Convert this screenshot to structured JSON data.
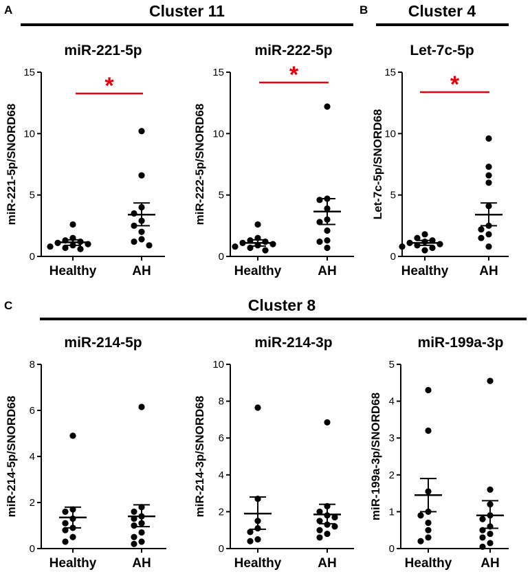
{
  "panels": {
    "a": {
      "letter": "A",
      "cluster": "Cluster 11"
    },
    "b": {
      "letter": "B",
      "cluster": "Cluster 4"
    },
    "c": {
      "letter": "C",
      "cluster": "Cluster 8"
    }
  },
  "colors": {
    "points": "#000000",
    "significance": "#e8000b"
  },
  "chart_data": [
    {
      "type": "scatter",
      "panel": "A",
      "title": "miR-221-5p",
      "ylabel": "miR-221-5p/SNORD68",
      "categories": [
        "Healthy",
        "AH"
      ],
      "ylim": [
        0,
        15
      ],
      "yticks": [
        0,
        5,
        10,
        15
      ],
      "significance": "*",
      "series": [
        {
          "name": "Healthy",
          "values": [
            2.6,
            1.5,
            1.3,
            1.2,
            1.1,
            1.0,
            0.9,
            0.8,
            0.7,
            0.6
          ],
          "mean": 1.15,
          "sem_low": 0.9,
          "sem_high": 1.35
        },
        {
          "name": "AH",
          "values": [
            10.2,
            6.6,
            4.0,
            3.5,
            2.9,
            2.5,
            2.0,
            1.4,
            1.2,
            0.9
          ],
          "mean": 3.4,
          "sem_low": 2.5,
          "sem_high": 4.35
        }
      ]
    },
    {
      "type": "scatter",
      "panel": "A",
      "title": "miR-222-5p",
      "ylabel": "miR-222-5p/SNORD68",
      "categories": [
        "Healthy",
        "AH"
      ],
      "ylim": [
        0,
        15
      ],
      "yticks": [
        0,
        5,
        10,
        15
      ],
      "significance": "*",
      "series": [
        {
          "name": "Healthy",
          "values": [
            2.6,
            1.5,
            1.3,
            1.2,
            1.1,
            1.0,
            0.9,
            0.8,
            0.7,
            0.5
          ],
          "mean": 1.1,
          "sem_low": 0.85,
          "sem_high": 1.35
        },
        {
          "name": "AH",
          "values": [
            12.2,
            4.7,
            4.6,
            3.9,
            3.0,
            2.8,
            2.1,
            1.3,
            1.2,
            0.7
          ],
          "mean": 3.65,
          "sem_low": 2.6,
          "sem_high": 4.7
        }
      ]
    },
    {
      "type": "scatter",
      "panel": "B",
      "title": "Let-7c-5p",
      "ylabel": "Let-7c-5p/SNORD68",
      "categories": [
        "Healthy",
        "AH"
      ],
      "ylim": [
        0,
        15
      ],
      "yticks": [
        0,
        5,
        10,
        15
      ],
      "significance": "*",
      "series": [
        {
          "name": "Healthy",
          "values": [
            1.8,
            1.5,
            1.3,
            1.2,
            1.1,
            1.0,
            0.9,
            0.8,
            0.7,
            0.5
          ],
          "mean": 1.1,
          "sem_low": 0.9,
          "sem_high": 1.3
        },
        {
          "name": "AH",
          "values": [
            9.6,
            7.3,
            6.6,
            6.0,
            4.1,
            2.5,
            2.2,
            1.8,
            1.5,
            0.8
          ],
          "mean": 3.4,
          "sem_low": 2.5,
          "sem_high": 4.35
        }
      ]
    },
    {
      "type": "scatter",
      "panel": "C",
      "title": "miR-214-5p",
      "ylabel": "miR-214-5p/SNORD68",
      "categories": [
        "Healthy",
        "AH"
      ],
      "ylim": [
        0,
        8
      ],
      "yticks": [
        0,
        2,
        4,
        6,
        8
      ],
      "significance": "",
      "series": [
        {
          "name": "Healthy",
          "values": [
            4.9,
            1.7,
            1.6,
            1.3,
            1.1,
            0.9,
            0.8,
            0.5,
            0.3
          ],
          "mean": 1.35,
          "sem_low": 0.9,
          "sem_high": 1.8
        },
        {
          "name": "AH",
          "values": [
            6.15,
            1.8,
            1.6,
            1.4,
            1.3,
            1.1,
            1.0,
            0.7,
            0.5,
            0.3,
            0.2
          ],
          "mean": 1.4,
          "sem_low": 0.95,
          "sem_high": 1.9
        }
      ]
    },
    {
      "type": "scatter",
      "panel": "C",
      "title": "miR-214-3p",
      "ylabel": "miR-214-3p/SNORD68",
      "categories": [
        "Healthy",
        "AH"
      ],
      "ylim": [
        0,
        10
      ],
      "yticks": [
        0,
        2,
        4,
        6,
        8,
        10
      ],
      "significance": "",
      "series": [
        {
          "name": "Healthy",
          "values": [
            7.65,
            2.7,
            1.5,
            1.1,
            0.9,
            0.5,
            0.4
          ],
          "mean": 1.9,
          "sem_low": 1.05,
          "sem_high": 2.8
        },
        {
          "name": "AH",
          "values": [
            6.85,
            2.3,
            2.0,
            1.8,
            1.7,
            1.5,
            1.3,
            1.2,
            1.0,
            0.8,
            0.6
          ],
          "mean": 1.85,
          "sem_low": 1.35,
          "sem_high": 2.4
        }
      ]
    },
    {
      "type": "scatter",
      "panel": "C",
      "title": "miR-199a-3p",
      "ylabel": "miR-199a-3p/SNORD68",
      "categories": [
        "Healthy",
        "AH"
      ],
      "ylim": [
        0,
        5
      ],
      "yticks": [
        0,
        1,
        2,
        3,
        4,
        5
      ],
      "significance": "",
      "series": [
        {
          "name": "Healthy",
          "values": [
            4.3,
            3.2,
            1.55,
            1.0,
            0.9,
            0.7,
            0.5,
            0.3,
            0.2
          ],
          "mean": 1.45,
          "sem_low": 1.0,
          "sem_high": 1.9
        },
        {
          "name": "AH",
          "values": [
            4.55,
            1.6,
            1.2,
            0.9,
            0.8,
            0.6,
            0.5,
            0.4,
            0.3,
            0.15,
            0.05
          ],
          "mean": 0.9,
          "sem_low": 0.55,
          "sem_high": 1.3
        }
      ]
    }
  ]
}
